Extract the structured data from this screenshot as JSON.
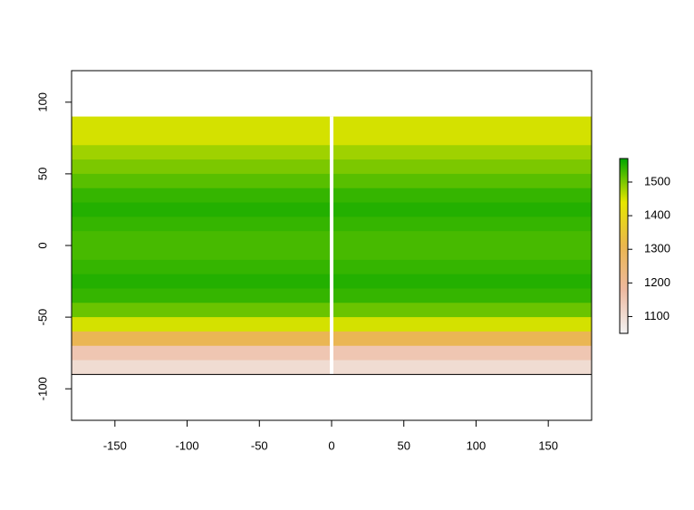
{
  "chart_data": {
    "type": "raster",
    "y": [
      85,
      75,
      65,
      55,
      45,
      35,
      25,
      15,
      5,
      -5,
      -15,
      -25,
      -35,
      -45,
      -55,
      -65,
      -75,
      -85
    ],
    "values": [
      1450,
      1450,
      1480,
      1500,
      1520,
      1540,
      1550,
      1540,
      1530,
      1530,
      1540,
      1550,
      1540,
      1510,
      1450,
      1300,
      1150,
      1100
    ],
    "xlim": [
      -180,
      180
    ],
    "ylim": [
      -122,
      122
    ],
    "xticks": [
      -150,
      -100,
      -50,
      0,
      50,
      100,
      150
    ],
    "yticks": [
      -100,
      -50,
      0,
      50,
      100
    ],
    "clim": [
      1050,
      1570
    ],
    "cticks": [
      1100,
      1200,
      1300,
      1400,
      1500
    ],
    "colors": [
      "#F2F2F2",
      "#EEB99F",
      "#EAB64E",
      "#E6E600",
      "#00A600"
    ]
  }
}
